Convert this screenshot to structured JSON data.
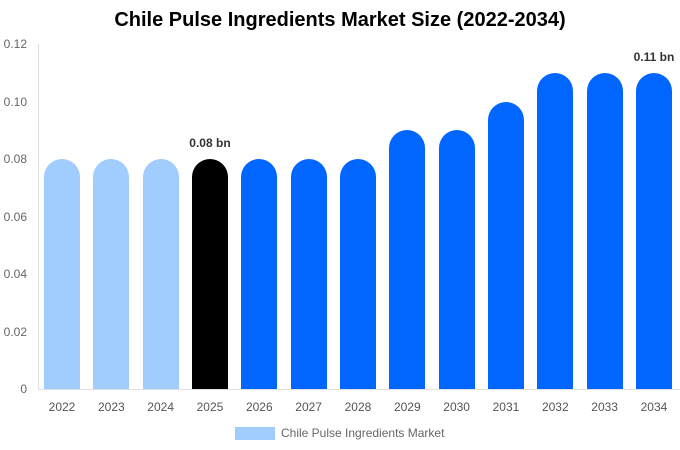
{
  "chart_data": {
    "type": "bar",
    "title": "Chile Pulse Ingredients Market Size (2022-2034)",
    "xlabel": "",
    "ylabel": "",
    "ylim": [
      0,
      0.12
    ],
    "yticks": [
      "0",
      "0.02",
      "0.04",
      "0.06",
      "0.08",
      "0.10",
      "0.12"
    ],
    "categories": [
      "2022",
      "2023",
      "2024",
      "2025",
      "2026",
      "2027",
      "2028",
      "2029",
      "2030",
      "2031",
      "2032",
      "2033",
      "2034"
    ],
    "series": [
      {
        "name": "Chile Pulse Ingredients Market",
        "values": [
          0.08,
          0.08,
          0.08,
          0.08,
          0.08,
          0.08,
          0.08,
          0.09,
          0.09,
          0.1,
          0.11,
          0.11,
          0.11
        ]
      }
    ],
    "bar_colors": [
      "#a0cdfe",
      "#a0cdfe",
      "#a0cdfe",
      "#000000",
      "#0066ff",
      "#0066ff",
      "#0066ff",
      "#0066ff",
      "#0066ff",
      "#0066ff",
      "#0066ff",
      "#0066ff",
      "#0066ff"
    ],
    "annotations": [
      {
        "category": "2025",
        "text": "0.08 bn"
      },
      {
        "category": "2034",
        "text": "0.11 bn"
      }
    ],
    "grid": false,
    "legend_position": "bottom"
  },
  "legend": {
    "label": "Chile Pulse Ingredients Market",
    "color": "#a0cdfe"
  }
}
